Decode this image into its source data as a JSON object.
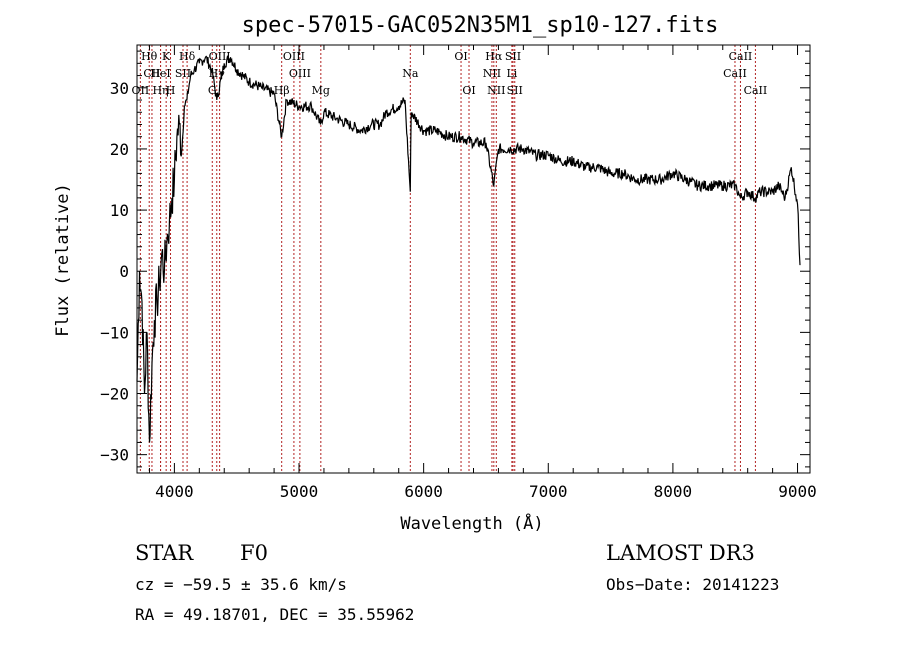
{
  "chart_data": {
    "type": "line",
    "title": "spec-57015-GAC052N35M1_sp10-127.fits",
    "xlabel": "Wavelength (Å)",
    "ylabel": "Flux (relative)",
    "xlim": [
      3700,
      9100
    ],
    "ylim": [
      -33,
      37
    ],
    "x_ticks": [
      4000,
      5000,
      6000,
      7000,
      8000,
      9000
    ],
    "x_tick_labels": [
      "4000",
      "5000",
      "6000",
      "7000",
      "8000",
      "9000"
    ],
    "y_ticks": [
      -30,
      -20,
      -10,
      0,
      10,
      20,
      30
    ],
    "y_tick_labels": [
      "−30",
      "−20",
      "−10",
      "0",
      "10",
      "20",
      "30"
    ],
    "x_minor_step": 200,
    "y_minor_step": 2,
    "series": [
      {
        "name": "flux",
        "x": [
          3700,
          3720,
          3740,
          3760,
          3780,
          3800,
          3820,
          3840,
          3860,
          3880,
          3900,
          3920,
          3940,
          3960,
          3980,
          4000,
          4020,
          4040,
          4060,
          4080,
          4100,
          4130,
          4160,
          4200,
          4250,
          4300,
          4340,
          4400,
          4450,
          4500,
          4550,
          4600,
          4700,
          4800,
          4861,
          4900,
          5000,
          5100,
          5172,
          5200,
          5300,
          5400,
          5500,
          5580,
          5650,
          5700,
          5800,
          5850,
          5893,
          5900,
          6000,
          6100,
          6200,
          6300,
          6400,
          6500,
          6563,
          6600,
          6700,
          6800,
          6900,
          7000,
          7100,
          7200,
          7300,
          7400,
          7500,
          7600,
          7700,
          7800,
          7900,
          8000,
          8100,
          8200,
          8300,
          8400,
          8500,
          8542,
          8600,
          8662,
          8700,
          8800,
          8850,
          8900,
          8950,
          9000,
          9020
        ],
        "y": [
          -18,
          0,
          -5,
          -20,
          -10,
          -28,
          -15,
          -8,
          -5,
          -2,
          3,
          0,
          5,
          8,
          12,
          15,
          22,
          24,
          20,
          27,
          28,
          32,
          33,
          34,
          35,
          33,
          28,
          34,
          35,
          33,
          32,
          31,
          30,
          29,
          22,
          28,
          27,
          27,
          24,
          26,
          25,
          24,
          23,
          24,
          24,
          26,
          27,
          28,
          13,
          26,
          23,
          23,
          22,
          22,
          21,
          21,
          14,
          20,
          20,
          20,
          19,
          19,
          18,
          18,
          17,
          17,
          16,
          16,
          15,
          15,
          15,
          16,
          15,
          14,
          14,
          14,
          14,
          12,
          13,
          12,
          13,
          13,
          14,
          12,
          17,
          11,
          1
        ]
      }
    ],
    "lines": [
      {
        "label": "Hθ",
        "wl": 3798,
        "tier": 0
      },
      {
        "label": "CII",
        "wl": 3820,
        "tier": 1
      },
      {
        "label": "OII",
        "wl": 3727,
        "tier": 2
      },
      {
        "label": "K",
        "wl": 3934,
        "tier": 0
      },
      {
        "label": "HeI",
        "wl": 3889,
        "tier": 1
      },
      {
        "label": "Hη",
        "wl": 3889,
        "tier": 2
      },
      {
        "label": "H",
        "wl": 3969,
        "tier": 2
      },
      {
        "label": "SII",
        "wl": 4069,
        "tier": 1
      },
      {
        "label": "Hδ",
        "wl": 4102,
        "tier": 0
      },
      {
        "label": "OIII",
        "wl": 4363,
        "tier": 0
      },
      {
        "label": "G",
        "wl": 4304,
        "tier": 2
      },
      {
        "label": "Hγ",
        "wl": 4340,
        "tier": 1
      },
      {
        "label": "Hβ",
        "wl": 4861,
        "tier": 2
      },
      {
        "label": "OIII",
        "wl": 4959,
        "tier": 0
      },
      {
        "label": "OIII",
        "wl": 5007,
        "tier": 1
      },
      {
        "label": "Mg",
        "wl": 5175,
        "tier": 2
      },
      {
        "label": "Na",
        "wl": 5893,
        "tier": 1
      },
      {
        "label": "OI",
        "wl": 6300,
        "tier": 0
      },
      {
        "label": "OI",
        "wl": 6364,
        "tier": 2
      },
      {
        "label": "Hα",
        "wl": 6563,
        "tier": 0
      },
      {
        "label": "NII",
        "wl": 6548,
        "tier": 1
      },
      {
        "label": "NII",
        "wl": 6583,
        "tier": 2
      },
      {
        "label": "SII",
        "wl": 6717,
        "tier": 0
      },
      {
        "label": "Li",
        "wl": 6708,
        "tier": 1
      },
      {
        "label": "SII",
        "wl": 6731,
        "tier": 2
      },
      {
        "label": "CaII",
        "wl": 8542,
        "tier": 0
      },
      {
        "label": "CaII",
        "wl": 8498,
        "tier": 1
      },
      {
        "label": "CaII",
        "wl": 8662,
        "tier": 2
      }
    ]
  },
  "info": {
    "object_class": "STAR",
    "subclass": "F0",
    "survey": "LAMOST DR3",
    "cz": "cz = −59.5 ± 35.6 km/s",
    "obs_date": "Obs−Date: 20141223",
    "coords": "RA =  49.18701, DEC =  35.55962"
  },
  "colors": {
    "axes": "#000000",
    "spectrum": "#000000",
    "line_markers": "#b22222"
  }
}
